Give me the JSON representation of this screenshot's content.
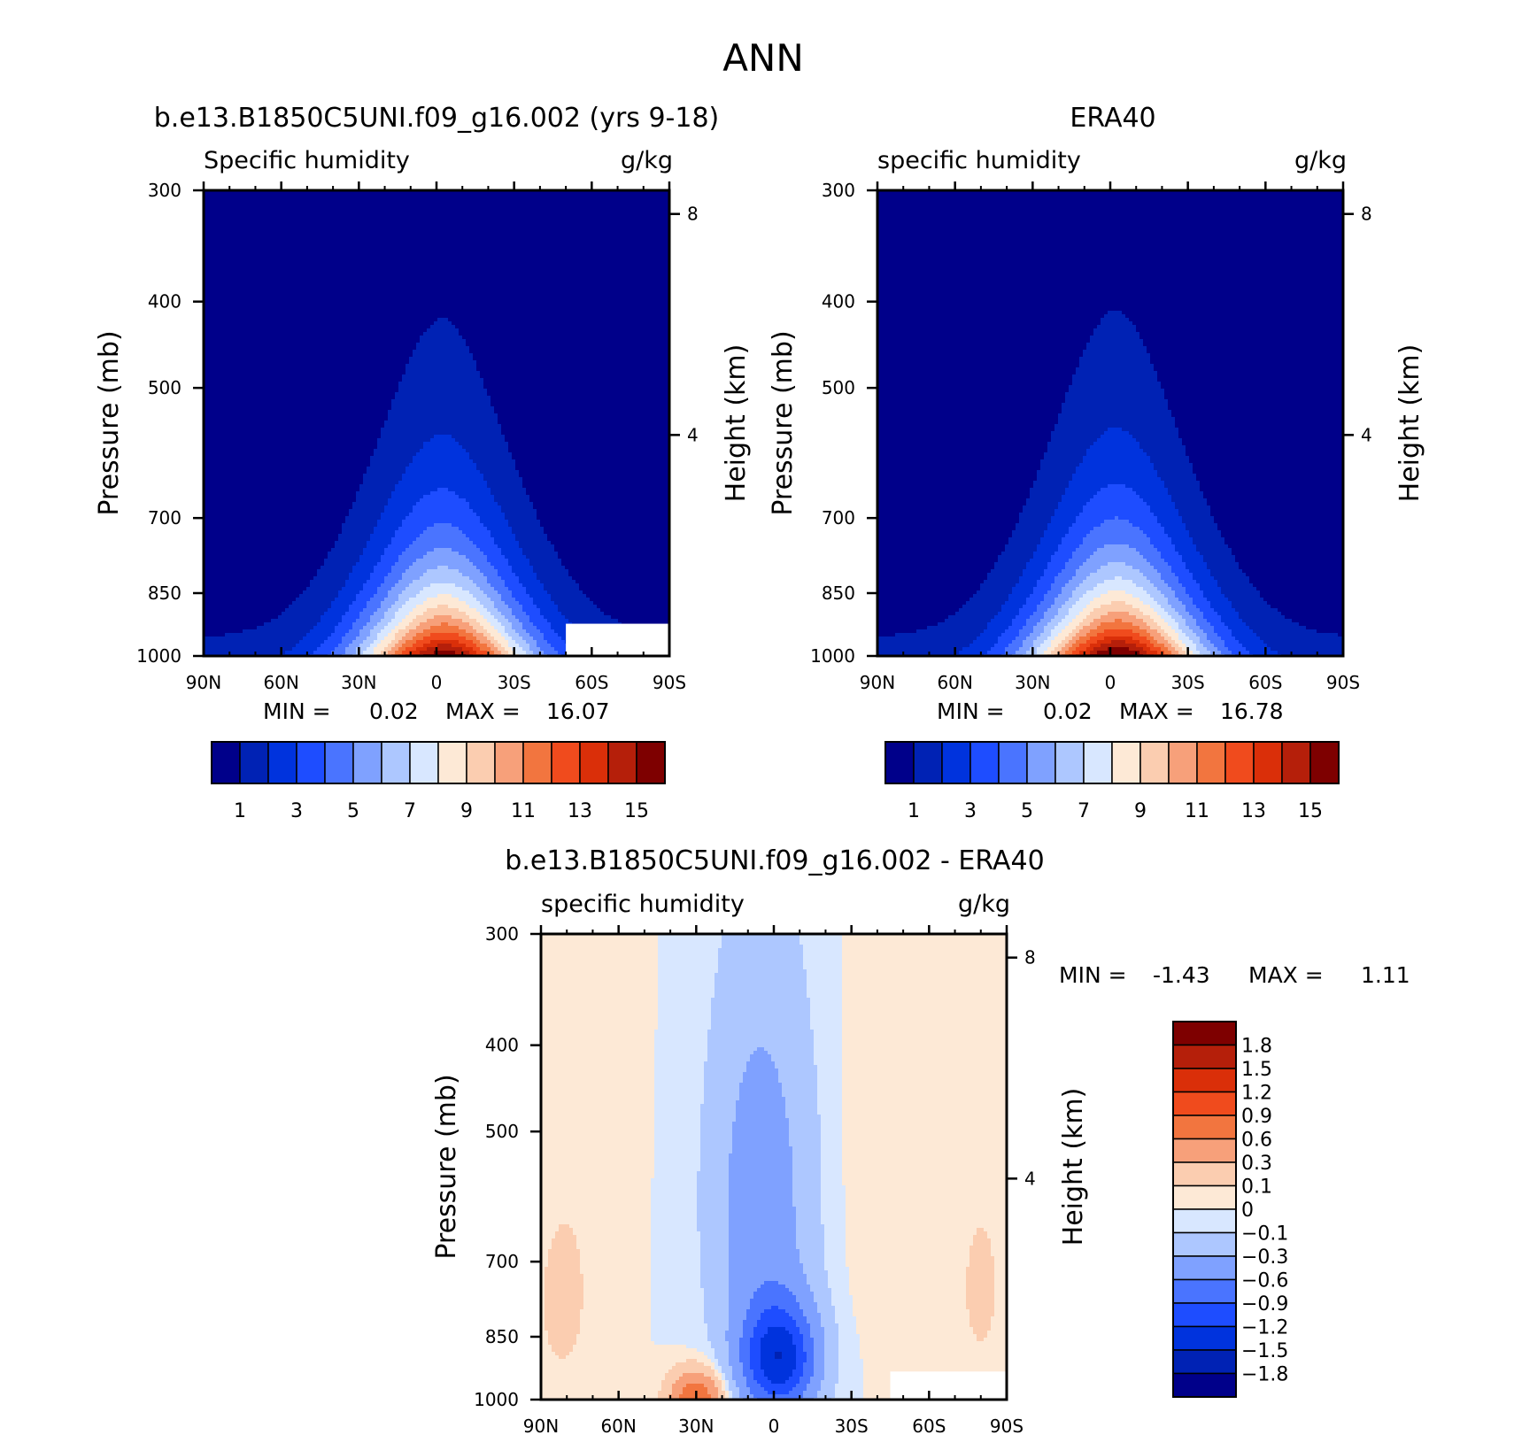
{
  "page_title": "ANN",
  "palette_abs": [
    "#00008a",
    "#0022b4",
    "#0033dd",
    "#1e4dff",
    "#4a74ff",
    "#7fa1ff",
    "#adc7ff",
    "#d8e7ff",
    "#fde9d6",
    "#fbcdb0",
    "#f7a07a",
    "#f2753f",
    "#f04b1d",
    "#da2f09",
    "#b51f0a",
    "#7e0000"
  ],
  "palette_diff": [
    "#00008a",
    "#0022b4",
    "#0033dd",
    "#1e4dff",
    "#4a74ff",
    "#7fa1ff",
    "#adc7ff",
    "#d8e7ff",
    "#fde9d6",
    "#fbcdb0",
    "#f7a07a",
    "#f2753f",
    "#f04b1d",
    "#da2f09",
    "#b51f0a",
    "#7e0000"
  ],
  "chart_data": [
    {
      "type": "heatmap",
      "title": "b.e13.B1850C5UNI.f09_g16.002 (yrs 9-18)",
      "left_subtitle": "Specific humidity",
      "right_subtitle": "g/kg",
      "xlabel": "",
      "ylabel": "Pressure (mb)",
      "y2label": "Height (km)",
      "x_ticks": [
        "90N",
        "60N",
        "30N",
        "0",
        "30S",
        "60S",
        "90S"
      ],
      "y_ticks": [
        "300",
        "400",
        "500",
        "700",
        "850",
        "1000"
      ],
      "y2_ticks": [
        "8",
        "4"
      ],
      "x_range": [
        90,
        -90
      ],
      "y_range_mb": [
        1000,
        300
      ],
      "y_scale": "log",
      "min_label": "MIN =",
      "min_value": "0.02",
      "max_label": "MAX =",
      "max_value": "16.07",
      "colorbar_labels": [
        "1",
        "3",
        "5",
        "7",
        "9",
        "11",
        "13",
        "15"
      ],
      "colorbar_levels": [
        1,
        2,
        3,
        4,
        5,
        6,
        7,
        8,
        9,
        10,
        11,
        12,
        13,
        14,
        15
      ],
      "max_surface_value": 16.07,
      "missing_region": {
        "lat_from": -50,
        "pressure_from_mb": 920
      }
    },
    {
      "type": "heatmap",
      "title": "ERA40",
      "left_subtitle": "specific humidity",
      "right_subtitle": "g/kg",
      "xlabel": "",
      "ylabel": "Pressure (mb)",
      "y2label": "Height (km)",
      "x_ticks": [
        "90N",
        "60N",
        "30N",
        "0",
        "30S",
        "60S",
        "90S"
      ],
      "y_ticks": [
        "300",
        "400",
        "500",
        "700",
        "850",
        "1000"
      ],
      "y2_ticks": [
        "8",
        "4"
      ],
      "x_range": [
        90,
        -90
      ],
      "y_range_mb": [
        1000,
        300
      ],
      "y_scale": "log",
      "min_label": "MIN =",
      "min_value": "0.02",
      "max_label": "MAX =",
      "max_value": "16.78",
      "colorbar_labels": [
        "1",
        "3",
        "5",
        "7",
        "9",
        "11",
        "13",
        "15"
      ],
      "colorbar_levels": [
        1,
        2,
        3,
        4,
        5,
        6,
        7,
        8,
        9,
        10,
        11,
        12,
        13,
        14,
        15
      ],
      "max_surface_value": 16.78
    },
    {
      "type": "heatmap",
      "title": "b.e13.B1850C5UNI.f09_g16.002 - ERA40",
      "left_subtitle": "specific humidity",
      "right_subtitle": "g/kg",
      "xlabel": "",
      "ylabel": "Pressure (mb)",
      "y2label": "Height (km)",
      "x_ticks": [
        "90N",
        "60N",
        "30N",
        "0",
        "30S",
        "60S",
        "90S"
      ],
      "y_ticks": [
        "300",
        "400",
        "500",
        "700",
        "850",
        "1000"
      ],
      "y2_ticks": [
        "8",
        "4"
      ],
      "x_range": [
        90,
        -90
      ],
      "y_range_mb": [
        1000,
        300
      ],
      "y_scale": "log",
      "min_label": "MIN =",
      "min_value": "-1.43",
      "max_label": "MAX =",
      "max_value": "1.11",
      "colorbar_labels": [
        "1.8",
        "1.5",
        "1.2",
        "0.9",
        "0.6",
        "0.3",
        "0.1",
        "0",
        "-0.1",
        "-0.3",
        "-0.6",
        "-0.9",
        "-1.2",
        "-1.5",
        "-1.8"
      ],
      "colorbar_levels": [
        -1.8,
        -1.5,
        -1.2,
        -0.9,
        -0.6,
        -0.3,
        -0.1,
        0,
        0.1,
        0.3,
        0.6,
        0.9,
        1.2,
        1.5,
        1.8
      ],
      "missing_region": {
        "lat_from": -45,
        "pressure_from_mb": 930
      }
    }
  ]
}
